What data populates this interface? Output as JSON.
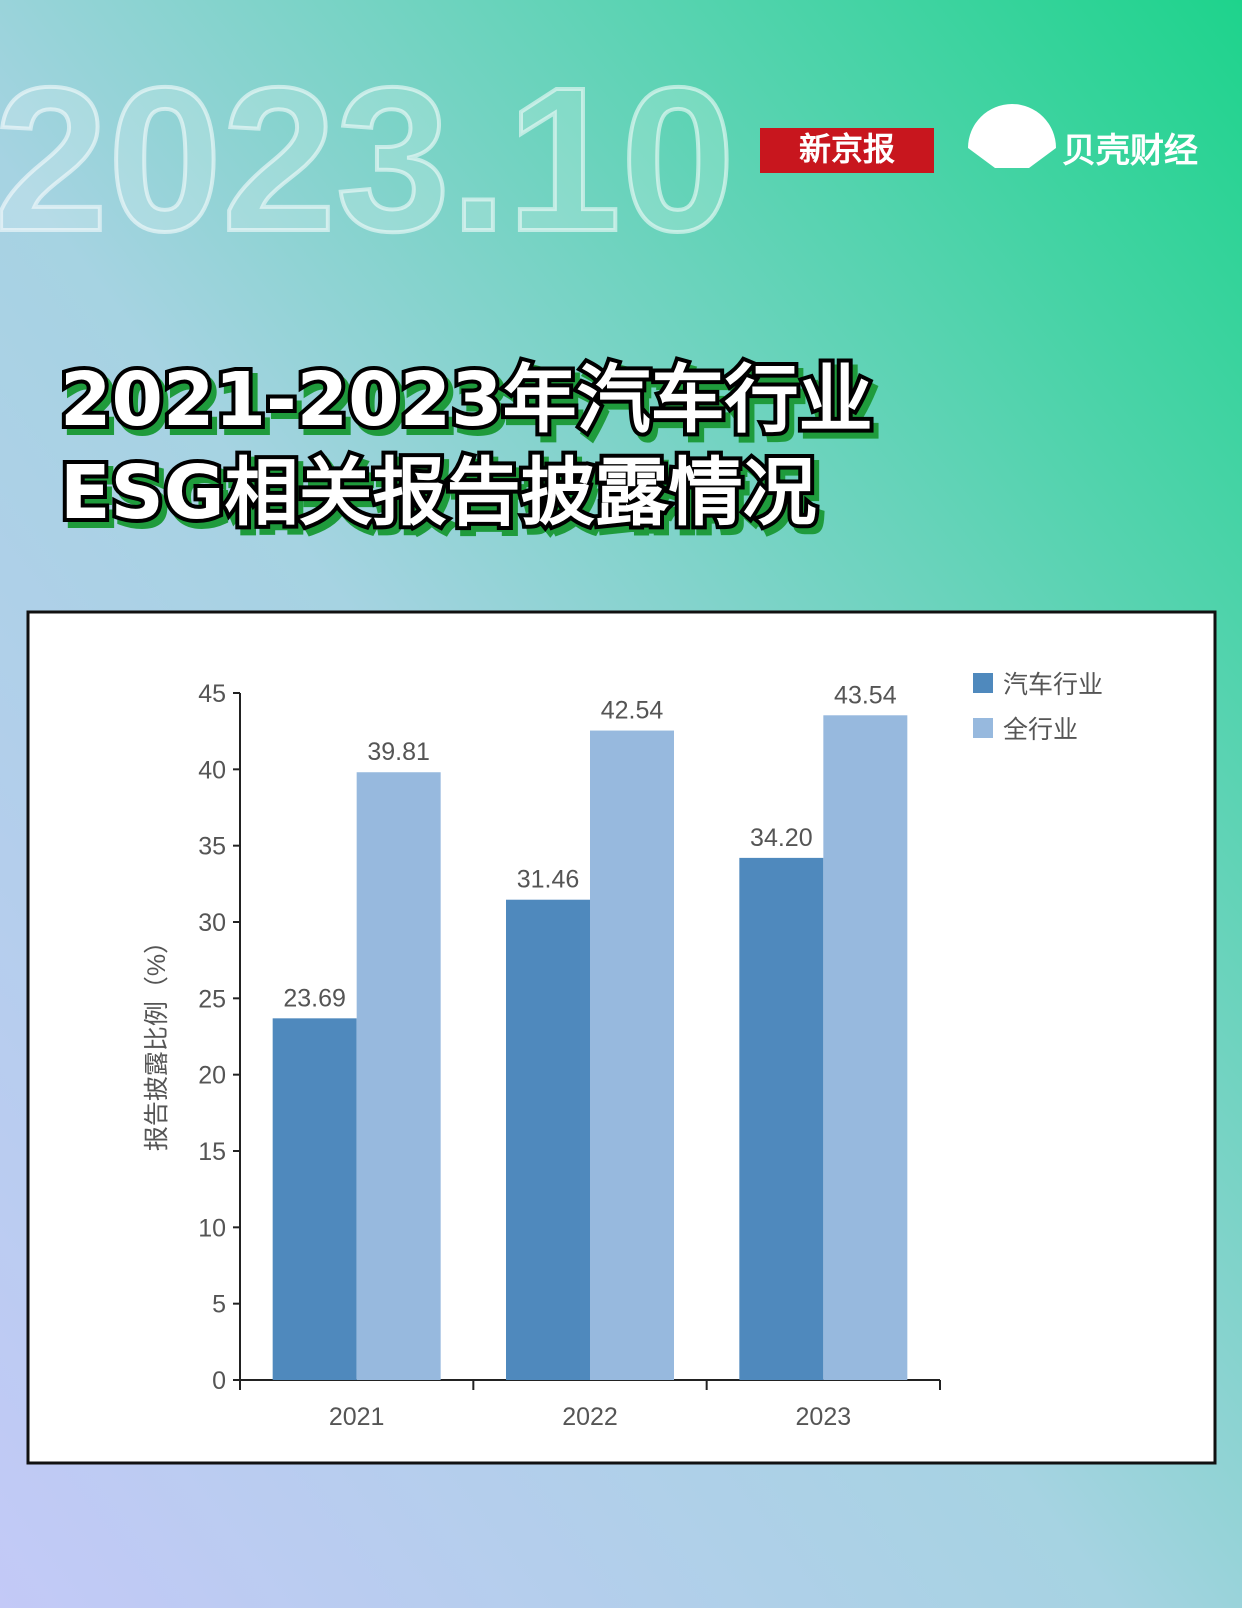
{
  "header": {
    "date": "2023.10",
    "logos": [
      "新京报",
      "贝壳财经"
    ]
  },
  "title": [
    "2021-2023年汽车行业",
    "ESG相关报告披露情况"
  ],
  "chart_data": {
    "type": "bar",
    "ylabel": "报告披露比例（%）",
    "categories": [
      "2021",
      "2022",
      "2023"
    ],
    "series": [
      {
        "name": "汽车行业",
        "color": "#4f89bd",
        "values": [
          23.69,
          31.46,
          34.2
        ],
        "value_labels": [
          "23.69",
          "31.46",
          "34.20"
        ]
      },
      {
        "name": "全行业",
        "color": "#97b9de",
        "values": [
          39.81,
          42.54,
          43.54
        ]
      }
    ],
    "ylim": [
      0,
      45
    ],
    "yticks": [
      0,
      5,
      10,
      15,
      20,
      25,
      30,
      35,
      40,
      45
    ],
    "grid": false,
    "legend": "top-right"
  }
}
